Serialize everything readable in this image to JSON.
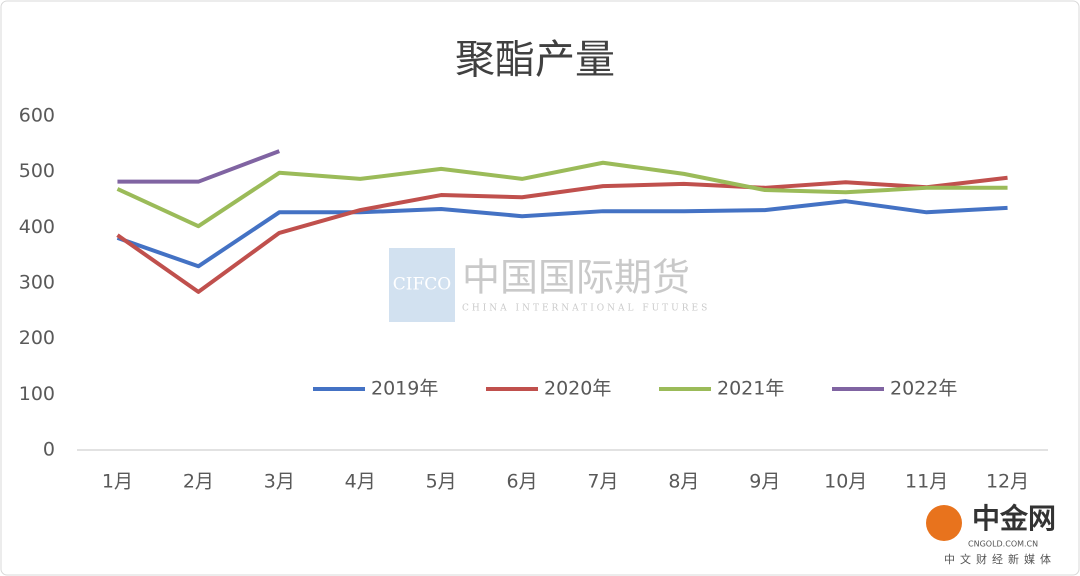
{
  "chart_data": {
    "type": "line",
    "title": "聚酯产量",
    "categories": [
      "1月",
      "2月",
      "3月",
      "4月",
      "5月",
      "6月",
      "7月",
      "8月",
      "9月",
      "10月",
      "11月",
      "12月"
    ],
    "series": [
      {
        "name": "2019年",
        "color": "#4472c4",
        "values": [
          381,
          330,
          427,
          427,
          433,
          420,
          429,
          429,
          431,
          447,
          427,
          435
        ]
      },
      {
        "name": "2020年",
        "color": "#c0504d",
        "values": [
          386,
          284,
          390,
          431,
          458,
          454,
          474,
          478,
          471,
          481,
          472,
          489
        ]
      },
      {
        "name": "2021年",
        "color": "#9bbb59",
        "values": [
          469,
          402,
          498,
          487,
          505,
          487,
          516,
          496,
          467,
          463,
          471,
          471
        ]
      },
      {
        "name": "2022年",
        "color": "#8064a2",
        "values": [
          482,
          482,
          537,
          null,
          null,
          null,
          null,
          null,
          null,
          null,
          null,
          null
        ]
      }
    ],
    "ylim": [
      0,
      600
    ],
    "yticks": [
      0,
      100,
      200,
      300,
      400,
      500,
      600
    ],
    "grid": false,
    "legend": "center"
  },
  "watermark": {
    "logo": "CIFCO",
    "name": "中国国际期货",
    "subtitle": "CHINA INTERNATIONAL FUTURES"
  },
  "source_logo": {
    "name": "中金网",
    "url": "CNGOLD.COM.CN",
    "tagline": "中文财经新媒体"
  }
}
